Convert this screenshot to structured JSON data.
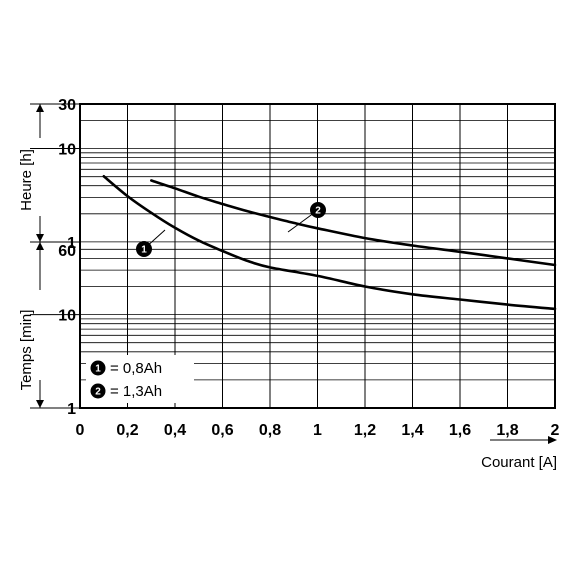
{
  "chart_data": {
    "type": "line",
    "xlabel": "Courant [A]",
    "ylabel_upper": "Heure [h]",
    "ylabel_lower": "Temps [min]",
    "xlim": [
      0,
      2
    ],
    "x_ticks": [
      "0",
      "0,2",
      "0,4",
      "0,6",
      "0,8",
      "1",
      "1,2",
      "1,4",
      "1,6",
      "1,8",
      "2"
    ],
    "y_ticks_hours": [
      "30",
      "10",
      "1"
    ],
    "y_ticks_minutes": [
      "60",
      "10",
      "1"
    ],
    "y_scale": "log",
    "grid": true,
    "legend": [
      {
        "marker": "1",
        "label": "= 0,8Ah"
      },
      {
        "marker": "2",
        "label": "= 1,3Ah"
      }
    ],
    "series": [
      {
        "marker": "1",
        "label": "= 0,8Ah",
        "x": [
          0.1,
          0.2,
          0.3,
          0.4,
          0.5,
          0.6,
          0.7,
          0.8,
          1.0,
          1.2,
          1.4,
          1.6,
          1.8,
          2.0
        ],
        "y_minutes": [
          303,
          186,
          123,
          85,
          62,
          48,
          38,
          32,
          26,
          20,
          16.5,
          14.5,
          12.8,
          11.5
        ]
      },
      {
        "marker": "2",
        "label": "= 1,3Ah",
        "x": [
          0.3,
          0.4,
          0.5,
          0.6,
          0.7,
          0.8,
          0.9,
          1.0,
          1.2,
          1.4,
          1.6,
          1.8,
          2.0
        ],
        "y_minutes": [
          273,
          225,
          183,
          153,
          129,
          111,
          96,
          84,
          66,
          55,
          47,
          40,
          34
        ]
      }
    ]
  }
}
